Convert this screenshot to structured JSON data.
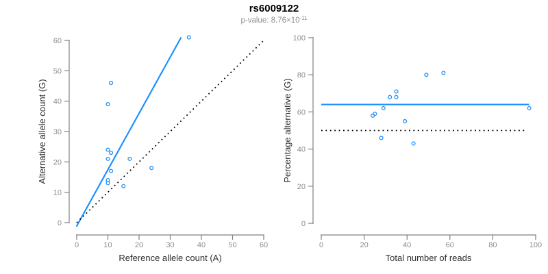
{
  "header": {
    "title": "rs6009122",
    "pvalue_label": "p-value: 8.76×10",
    "pvalue_exponent": "-11"
  },
  "colors": {
    "accent_blue": "#1E90FF",
    "dotted_black": "#000000",
    "axis_gray": "#808080",
    "tick_label_gray": "#8c8c8c",
    "axis_title_dark": "#2e2e2e",
    "subtitle_gray": "#8f8f8f"
  },
  "chart_data": [
    {
      "type": "scatter",
      "panel": "left",
      "xlabel": "Reference allele count (A)",
      "ylabel": "Alternative allele count (G)",
      "xlim": [
        0,
        60
      ],
      "ylim": [
        0,
        60
      ],
      "xticks": [
        0,
        10,
        20,
        30,
        40,
        50,
        60
      ],
      "yticks": [
        0,
        10,
        20,
        30,
        40,
        50,
        60
      ],
      "grid": false,
      "legend": "none",
      "points": [
        [
          36,
          61
        ],
        [
          11,
          46
        ],
        [
          10,
          39
        ],
        [
          10,
          24
        ],
        [
          11,
          23
        ],
        [
          10,
          21
        ],
        [
          17,
          21
        ],
        [
          11,
          17
        ],
        [
          24,
          18
        ],
        [
          10,
          14
        ],
        [
          10,
          13
        ],
        [
          15,
          12
        ]
      ],
      "lines": [
        {
          "name": "fit-line",
          "x1": -0.1,
          "y1": -1.3,
          "x2": 33.5,
          "y2": 61.0,
          "style": "solid",
          "color": "#1E90FF"
        },
        {
          "name": "identity-line",
          "x1": 0,
          "y1": 0,
          "x2": 60,
          "y2": 60,
          "style": "dotted",
          "color": "#000000"
        }
      ]
    },
    {
      "type": "scatter",
      "panel": "right",
      "xlabel": "Total number of reads",
      "ylabel": "Percentage alternative (G)",
      "xlim": [
        0,
        100
      ],
      "ylim": [
        0,
        100
      ],
      "xticks": [
        0,
        20,
        40,
        60,
        80,
        100
      ],
      "yticks": [
        0,
        20,
        40,
        60,
        80,
        100
      ],
      "grid": false,
      "legend": "none",
      "points": [
        [
          97,
          62
        ],
        [
          57,
          81
        ],
        [
          49,
          80
        ],
        [
          35,
          71
        ],
        [
          35,
          68
        ],
        [
          32,
          68
        ],
        [
          39,
          55
        ],
        [
          29,
          62
        ],
        [
          43,
          43
        ],
        [
          25,
          59
        ],
        [
          24,
          58
        ],
        [
          28,
          46
        ]
      ],
      "lines": [
        {
          "name": "mean-percentage-line",
          "x1": 0,
          "y1": 64,
          "x2": 97,
          "y2": 64,
          "style": "solid",
          "color": "#1E90FF"
        },
        {
          "name": "fifty-percent-line",
          "x1": 0,
          "y1": 50,
          "x2": 95.5,
          "y2": 50,
          "style": "dotted",
          "color": "#000000"
        }
      ]
    }
  ]
}
